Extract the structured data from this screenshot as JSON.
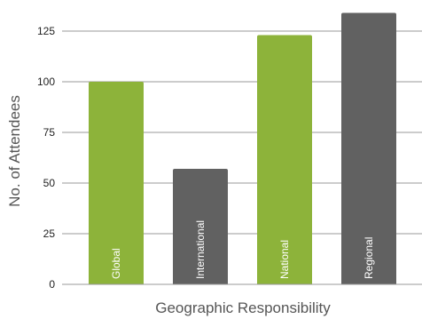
{
  "chart_data": {
    "type": "bar",
    "categories": [
      "Global",
      "International",
      "National",
      "Regional"
    ],
    "values": [
      100,
      57,
      123,
      134
    ],
    "bar_colors": [
      "#8db33a",
      "#616161",
      "#8db33a",
      "#616161"
    ],
    "xlabel": "Geographic Responsibility",
    "ylabel": "No. of Attendees",
    "ylim": [
      0,
      135
    ],
    "yticks": [
      0,
      25,
      50,
      75,
      100,
      125
    ],
    "grid": true,
    "bar_labels_inside": true
  }
}
